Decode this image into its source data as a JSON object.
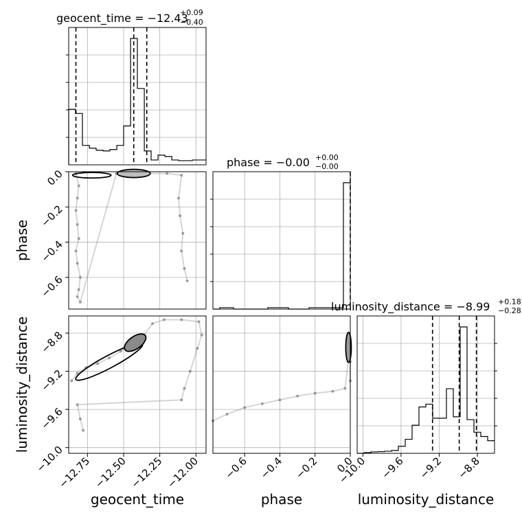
{
  "chart_data": {
    "type": "corner",
    "parameters": [
      "geocent_time",
      "phase",
      "luminosity_distance"
    ],
    "titles": [
      {
        "param": "geocent_time",
        "prefix": "geocent_time = ",
        "median": "−12.43",
        "plus": "+0.09",
        "minus": "−0.40"
      },
      {
        "param": "phase",
        "prefix": "phase = ",
        "median": "−0.00",
        "plus": "+0.00",
        "minus": "−0.00"
      },
      {
        "param": "luminosity_distance",
        "prefix": "luminosity_distance = ",
        "median": "−8.99",
        "plus": "+0.18",
        "minus": "−0.28"
      }
    ],
    "axis_labels": {
      "x": [
        "geocent_time",
        "phase",
        "luminosity_distance"
      ],
      "y": [
        "phase",
        "luminosity_distance"
      ]
    },
    "ranges": {
      "geocent_time": [
        -12.88,
        -11.93
      ],
      "phase": [
        -0.78,
        0.0
      ],
      "luminosity_distance": [
        -10.06,
        -8.62
      ]
    },
    "ticks": {
      "geocent_time": [
        -12.75,
        -12.5,
        -12.25,
        -12.0
      ],
      "phase": [
        -0.6,
        -0.4,
        -0.2,
        0.0
      ],
      "luminosity_distance": [
        -10.0,
        -9.6,
        -9.2,
        -8.8
      ]
    },
    "tick_labels": {
      "geocent_time": [
        "−12.75",
        "−12.50",
        "−12.25",
        "−12.00"
      ],
      "phase": [
        "−0.6",
        "−0.4",
        "−0.2",
        "0.0"
      ],
      "luminosity_distance": [
        "−10.0",
        "−9.6",
        "−9.2",
        "−8.8"
      ]
    },
    "grid": true,
    "histograms": {
      "geocent_time": {
        "edges": [
          -12.88,
          -12.833,
          -12.785,
          -12.737,
          -12.69,
          -12.642,
          -12.595,
          -12.547,
          -12.5,
          -12.452,
          -12.405,
          -12.357,
          -12.31,
          -12.262,
          -12.215,
          -12.167,
          -12.12,
          -12.072,
          -12.025,
          -11.977,
          -11.93
        ],
        "counts": [
          0.4,
          0.37,
          0.14,
          0.12,
          0.105,
          0.1,
          0.11,
          0.14,
          0.28,
          0.91,
          0.55,
          0.1,
          0.035,
          0.07,
          0.06,
          0.035,
          0.03,
          0.03,
          0.035,
          0.035
        ],
        "quantiles": [
          -12.83,
          -12.43,
          -12.34
        ]
      },
      "phase": {
        "edges": [
          -0.78,
          -0.741,
          -0.702,
          -0.663,
          -0.624,
          -0.585,
          -0.546,
          -0.507,
          -0.468,
          -0.429,
          -0.39,
          -0.351,
          -0.312,
          -0.273,
          -0.234,
          -0.195,
          -0.156,
          -0.117,
          -0.078,
          -0.039,
          0.0
        ],
        "counts": [
          0,
          0.01,
          0.01,
          0,
          0,
          0,
          0,
          0,
          0.01,
          0.01,
          0.01,
          0,
          0,
          0,
          0.01,
          0.01,
          0.01,
          0.01,
          0.01,
          0.9
        ],
        "quantiles": [
          0.0
        ]
      },
      "luminosity_distance": {
        "edges": [
          -10.06,
          -9.988,
          -9.916,
          -9.844,
          -9.772,
          -9.7,
          -9.628,
          -9.556,
          -9.484,
          -9.412,
          -9.34,
          -9.268,
          -9.196,
          -9.124,
          -9.052,
          -8.98,
          -8.908,
          -8.836,
          -8.764,
          -8.692,
          -8.62
        ],
        "counts": [
          0.0,
          0.005,
          0.01,
          0.012,
          0.015,
          0.02,
          0.05,
          0.1,
          0.2,
          0.33,
          0.35,
          0.25,
          0.25,
          0.46,
          0.26,
          0.9,
          0.24,
          0.15,
          0.12,
          0.09
        ],
        "quantiles": [
          -9.27,
          -8.99,
          -8.81
        ]
      }
    },
    "scatter": {
      "geocent_time_vs_phase": {
        "points": [
          [
            -12.83,
            -0.01
          ],
          [
            -12.81,
            -0.08
          ],
          [
            -12.82,
            -0.15
          ],
          [
            -12.83,
            -0.22
          ],
          [
            -12.82,
            -0.3
          ],
          [
            -12.81,
            -0.38
          ],
          [
            -12.83,
            -0.45
          ],
          [
            -12.82,
            -0.52
          ],
          [
            -12.8,
            -0.6
          ],
          [
            -12.81,
            -0.67
          ],
          [
            -12.82,
            -0.71
          ],
          [
            -12.8,
            -0.74
          ],
          [
            -12.55,
            -0.01
          ],
          [
            -12.45,
            -0.02
          ],
          [
            -12.35,
            -0.01
          ],
          [
            -12.2,
            -0.01
          ],
          [
            -12.1,
            -0.02
          ],
          [
            -12.12,
            -0.15
          ],
          [
            -12.11,
            -0.25
          ],
          [
            -12.09,
            -0.35
          ],
          [
            -12.1,
            -0.45
          ],
          [
            -12.08,
            -0.55
          ],
          [
            -12.06,
            -0.62
          ]
        ]
      },
      "geocent_time_vs_luminosity_distance": {
        "points": [
          [
            -12.86,
            -9.3
          ],
          [
            -12.82,
            -9.22
          ],
          [
            -12.76,
            -9.16
          ],
          [
            -12.68,
            -9.12
          ],
          [
            -12.6,
            -9.06
          ],
          [
            -12.52,
            -8.99
          ],
          [
            -12.45,
            -8.92
          ],
          [
            -12.42,
            -8.86
          ],
          [
            -12.37,
            -8.84
          ],
          [
            -12.3,
            -8.7
          ],
          [
            -12.22,
            -8.66
          ],
          [
            -12.1,
            -8.66
          ],
          [
            -11.98,
            -8.68
          ],
          [
            -11.96,
            -8.82
          ],
          [
            -11.99,
            -8.96
          ],
          [
            -12.04,
            -9.2
          ],
          [
            -12.08,
            -9.38
          ],
          [
            -12.1,
            -9.5
          ],
          [
            -12.82,
            -9.55
          ],
          [
            -12.8,
            -9.7
          ],
          [
            -12.78,
            -9.82
          ]
        ]
      },
      "phase_vs_luminosity_distance": {
        "points": [
          [
            -0.78,
            -9.72
          ],
          [
            -0.7,
            -9.65
          ],
          [
            -0.6,
            -9.58
          ],
          [
            -0.5,
            -9.54
          ],
          [
            -0.4,
            -9.5
          ],
          [
            -0.3,
            -9.46
          ],
          [
            -0.2,
            -9.43
          ],
          [
            -0.1,
            -9.41
          ],
          [
            -0.03,
            -9.38
          ],
          [
            0.0,
            -8.9
          ],
          [
            0.0,
            -9.1
          ],
          [
            0.0,
            -9.3
          ]
        ]
      }
    }
  }
}
